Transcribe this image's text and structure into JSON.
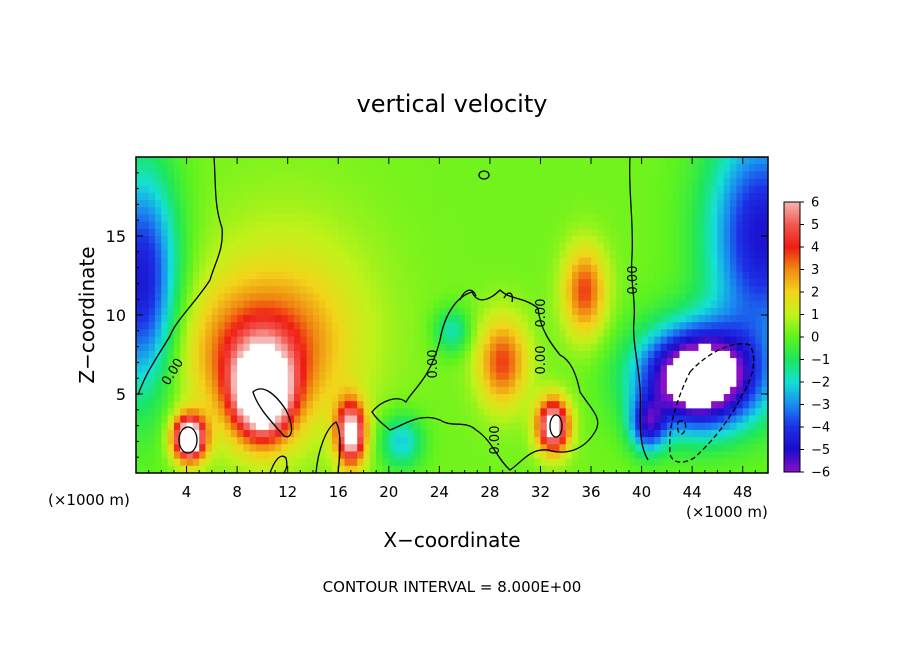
{
  "chart_data": {
    "type": "heatmap",
    "title": "vertical velocity",
    "xlabel": "X−coordinate",
    "ylabel": "Z−coordinate",
    "x_unit_left": "(×1000 m)",
    "x_unit_right": "(×1000 m)",
    "footer": "CONTOUR INTERVAL = 8.000E+00",
    "xlim": [
      0,
      50
    ],
    "ylim": [
      0,
      20
    ],
    "x_ticks": [
      4,
      8,
      12,
      16,
      20,
      24,
      28,
      32,
      36,
      40,
      44,
      48
    ],
    "y_ticks": [
      5,
      10,
      15
    ],
    "colorbar": {
      "range": [
        -6,
        6
      ],
      "ticks": [
        6,
        5,
        4,
        3,
        2,
        1,
        0,
        -1,
        -2,
        -3,
        -4,
        -5,
        -6
      ],
      "colors": [
        {
          "v": 6.0,
          "c": "#f6b6b4"
        },
        {
          "v": 5.0,
          "c": "#f2584f"
        },
        {
          "v": 4.0,
          "c": "#ef1c15"
        },
        {
          "v": 3.0,
          "c": "#f08a12"
        },
        {
          "v": 2.0,
          "c": "#f2d41a"
        },
        {
          "v": 1.0,
          "c": "#c2f21a"
        },
        {
          "v": 0.0,
          "c": "#5ef31e"
        },
        {
          "v": -1.0,
          "c": "#1de65a"
        },
        {
          "v": -2.0,
          "c": "#14e0d6"
        },
        {
          "v": -3.0,
          "c": "#1a8cf0"
        },
        {
          "v": -4.0,
          "c": "#1d30e6"
        },
        {
          "v": -5.0,
          "c": "#1a0ccb"
        },
        {
          "v": -6.0,
          "c": "#8a10c8"
        }
      ]
    },
    "contour_labels": [
      "0.00",
      "0.00",
      "0.00",
      "0.00",
      "0.00",
      "0.00"
    ],
    "features": [
      {
        "x": 4.2,
        "z": 2.2,
        "value": 8.5,
        "sx": 0.9,
        "sz": 1.0
      },
      {
        "x": 10.0,
        "z": 5.0,
        "value": 8.0,
        "sx": 1.6,
        "sz": 2.0
      },
      {
        "x": 9.5,
        "z": 7.5,
        "value": 3.0,
        "sx": 4.0,
        "sz": 3.0
      },
      {
        "x": 12.0,
        "z": 9.5,
        "value": 1.5,
        "sx": 5.0,
        "sz": 5.0
      },
      {
        "x": 17.0,
        "z": 2.5,
        "value": 7.0,
        "sx": 0.8,
        "sz": 1.4
      },
      {
        "x": 33.0,
        "z": 3.0,
        "value": 7.0,
        "sx": 0.9,
        "sz": 1.2
      },
      {
        "x": 35.5,
        "z": 11.5,
        "value": 3.5,
        "sx": 1.2,
        "sz": 2.0
      },
      {
        "x": 29.0,
        "z": 7.0,
        "value": 3.5,
        "sx": 1.4,
        "sz": 2.0
      },
      {
        "x": 44.5,
        "z": 6.0,
        "value": -9.0,
        "sx": 3.2,
        "sz": 2.2
      },
      {
        "x": 0.5,
        "z": 12.0,
        "value": -5.0,
        "sx": 2.0,
        "sz": 5.0
      },
      {
        "x": 49.5,
        "z": 15.0,
        "value": -5.0,
        "sx": 3.0,
        "sz": 5.0
      },
      {
        "x": 40.5,
        "z": 3.0,
        "value": -4.0,
        "sx": 1.0,
        "sz": 1.2
      },
      {
        "x": 21.0,
        "z": 2.0,
        "value": -2.5,
        "sx": 1.2,
        "sz": 1.2
      },
      {
        "x": 25.0,
        "z": 9.0,
        "value": -2.0,
        "sx": 1.0,
        "sz": 1.0
      }
    ]
  }
}
